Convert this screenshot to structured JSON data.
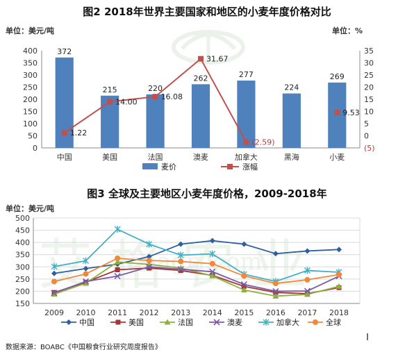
{
  "source": "数据来源：BOABC《中国粮食行业研究周度报告》",
  "chart_data": [
    {
      "type": "bar+line",
      "title": "图2 2018年世界主要国家和地区的小麦年度价格对比",
      "left_unit": "单位：美元/吨",
      "right_unit": "单位：%",
      "categories": [
        "中国",
        "美国",
        "法国",
        "澳麦",
        "加拿大",
        "黑海",
        "小麦"
      ],
      "left_ylim": [
        0,
        400
      ],
      "left_ticks": [
        "0",
        "50",
        "100",
        "150",
        "200",
        "250",
        "300",
        "350",
        "400"
      ],
      "right_ylim": [
        -5,
        35
      ],
      "right_ticks": [
        "(5)",
        "0",
        "5",
        "10",
        "15",
        "20",
        "25",
        "30",
        "35"
      ],
      "series": [
        {
          "name": "麦价",
          "kind": "bar",
          "color": "#4f81bd",
          "values": [
            372,
            215,
            220,
            262,
            277,
            224,
            269
          ],
          "labels": [
            "372",
            "215",
            "220",
            "262",
            "277",
            "224",
            "269"
          ]
        },
        {
          "name": "涨幅",
          "kind": "line",
          "color": "#c0504d",
          "points": [
            {
              "category": "中国",
              "value": 1.22,
              "label": "1.22"
            },
            {
              "category": "美国",
              "value": 14.0,
              "label": "14.00"
            },
            {
              "category": "法国",
              "value": 16.08,
              "label": "16.08"
            },
            {
              "category": "澳麦",
              "value": 31.67,
              "label": "31.67"
            },
            {
              "category": "加拿大",
              "value": -2.59,
              "label": "(2.59)"
            },
            {
              "category": "小麦",
              "value": 9.53,
              "label": "9.53"
            }
          ]
        }
      ],
      "legend": "bottom"
    },
    {
      "type": "line",
      "title": "图3 全球及主要地区小麦年度价格，2009-2018年",
      "unit": "单位：美元/吨",
      "x": [
        "2009",
        "2010",
        "2011",
        "2012",
        "2013",
        "2014",
        "2015",
        "2016",
        "2017",
        "2018"
      ],
      "ylim": [
        150,
        500
      ],
      "yticks": [
        "150",
        "200",
        "250",
        "300",
        "350",
        "400",
        "450",
        "500"
      ],
      "grid": true,
      "series": [
        {
          "name": "中国",
          "color": "#2e5f9e",
          "marker": "diamond",
          "values": [
            273,
            293,
            311,
            342,
            393,
            407,
            393,
            354,
            365,
            371
          ]
        },
        {
          "name": "美国",
          "color": "#a93232",
          "marker": "square",
          "values": [
            195,
            237,
            288,
            295,
            285,
            265,
            220,
            195,
            190,
            215
          ]
        },
        {
          "name": "法国",
          "color": "#8fb13c",
          "marker": "triangle",
          "values": [
            188,
            233,
            320,
            310,
            295,
            263,
            205,
            180,
            187,
            220
          ]
        },
        {
          "name": "澳麦",
          "color": "#7b5aa6",
          "marker": "x",
          "values": [
            193,
            240,
            262,
            300,
            290,
            280,
            228,
            200,
            201,
            262
          ]
        },
        {
          "name": "加拿大",
          "color": "#3fb0c5",
          "marker": "star",
          "values": [
            301,
            325,
            454,
            393,
            348,
            353,
            270,
            240,
            285,
            278
          ]
        },
        {
          "name": "全球",
          "color": "#f0883a",
          "marker": "circle",
          "values": [
            240,
            271,
            335,
            326,
            322,
            313,
            263,
            232,
            247,
            268
          ]
        }
      ],
      "legend": "bottom"
    }
  ]
}
